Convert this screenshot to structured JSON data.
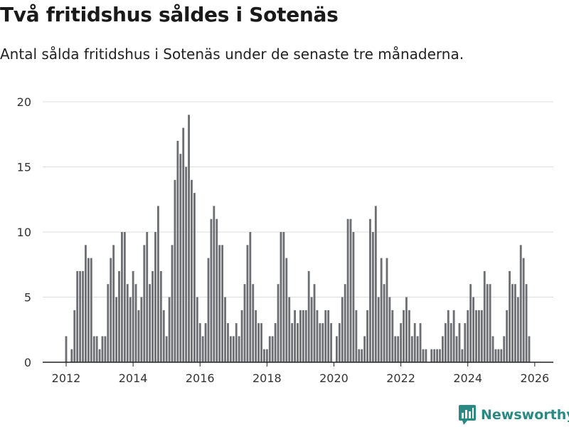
{
  "chart_data": {
    "type": "bar",
    "title": "Två fritidshus såldes i Sotenäs",
    "subtitle": "Antal sålda fritidshus i Sotenäs under de senaste tre månaderna.",
    "xlabel": "",
    "ylabel": "",
    "x_start": "2012-01",
    "x_ticks": [
      "2012",
      "2014",
      "2016",
      "2018",
      "2020",
      "2022",
      "2024",
      "2026"
    ],
    "y_ticks": [
      0,
      5,
      10,
      15,
      20
    ],
    "ylim": [
      0,
      20
    ],
    "grid": true,
    "values": [
      2,
      0,
      1,
      4,
      7,
      7,
      7,
      9,
      8,
      8,
      2,
      2,
      1,
      2,
      2,
      6,
      8,
      9,
      5,
      7,
      10,
      10,
      6,
      5,
      7,
      6,
      4,
      5,
      9,
      10,
      6,
      7,
      10,
      12,
      7,
      4,
      2,
      5,
      9,
      14,
      17,
      16,
      18,
      15,
      19,
      14,
      13,
      5,
      3,
      2,
      3,
      8,
      11,
      12,
      11,
      9,
      9,
      5,
      3,
      2,
      2,
      3,
      2,
      4,
      6,
      9,
      10,
      6,
      4,
      3,
      3,
      1,
      1,
      2,
      2,
      3,
      6,
      10,
      10,
      8,
      5,
      3,
      4,
      3,
      4,
      4,
      4,
      7,
      5,
      6,
      4,
      3,
      3,
      4,
      4,
      3,
      0,
      2,
      3,
      5,
      6,
      11,
      11,
      10,
      4,
      1,
      1,
      2,
      4,
      11,
      10,
      12,
      5,
      8,
      6,
      8,
      5,
      4,
      2,
      2,
      3,
      4,
      5,
      4,
      2,
      3,
      2,
      3,
      1,
      1,
      0,
      1,
      1,
      1,
      1,
      2,
      3,
      4,
      3,
      4,
      2,
      3,
      1,
      3,
      4,
      6,
      5,
      4,
      4,
      4,
      7,
      6,
      6,
      2,
      1,
      1,
      1,
      2,
      4,
      7,
      6,
      6,
      5,
      9,
      8,
      6,
      2
    ],
    "highlight_index": 168,
    "highlight_label": "2",
    "colors": {
      "bar": "#6d6e73",
      "highlight": "#2a9187",
      "grid": "#dddddd",
      "axis": "#222222"
    }
  },
  "branding": {
    "name": "Newsworthy",
    "icon": "newsworthy-logo-icon"
  }
}
